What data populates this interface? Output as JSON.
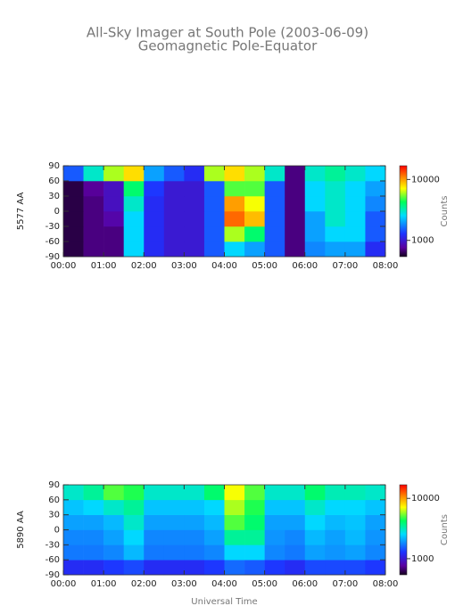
{
  "header": {
    "title": "All-Sky Imager at South Pole (2003-06-09)",
    "subtitle": "Geomagnetic Pole-Equator"
  },
  "chart_data": [
    {
      "type": "heatmap",
      "ylabel": "5577 AA",
      "colorbar_label": "Counts",
      "log_color": true,
      "xbins": [
        0,
        0.5,
        1,
        1.5,
        2,
        2.5,
        3,
        3.5,
        4,
        4.5,
        5,
        5.5,
        6,
        6.5,
        7,
        7.5,
        8
      ],
      "ybins": [
        -90,
        -60,
        -30,
        0,
        30,
        60,
        90
      ],
      "values": [
        [
          600,
          700,
          700,
          2500,
          1200,
          1000,
          1000,
          1500,
          2500,
          2000,
          1500,
          700,
          1800,
          2000,
          2000,
          1200
        ],
        [
          600,
          700,
          700,
          2500,
          1200,
          1000,
          1000,
          1500,
          6000,
          4000,
          1500,
          700,
          2000,
          2500,
          2500,
          1500
        ],
        [
          600,
          700,
          800,
          2500,
          1200,
          1000,
          1000,
          1500,
          12000,
          9000,
          1500,
          700,
          2000,
          3000,
          2500,
          1500
        ],
        [
          600,
          700,
          900,
          3000,
          1200,
          1000,
          1000,
          1500,
          10000,
          7000,
          1500,
          700,
          2500,
          3000,
          2500,
          1800
        ],
        [
          600,
          750,
          900,
          4000,
          1300,
          1000,
          1000,
          1500,
          5000,
          5000,
          1500,
          700,
          2500,
          3000,
          2500,
          2000
        ],
        [
          1500,
          3000,
          6000,
          8000,
          2000,
          1500,
          1200,
          6000,
          8000,
          6000,
          3000,
          700,
          3000,
          3500,
          3000,
          2500
        ]
      ],
      "xlim": [
        0,
        8
      ],
      "xticks": [
        {
          "value": 0,
          "label": "00:00"
        },
        {
          "value": 1,
          "label": "01:00"
        },
        {
          "value": 2,
          "label": "02:00"
        },
        {
          "value": 3,
          "label": "03:00"
        },
        {
          "value": 4,
          "label": "04:00"
        },
        {
          "value": 5,
          "label": "05:00"
        },
        {
          "value": 6,
          "label": "06:00"
        },
        {
          "value": 7,
          "label": "07:00"
        },
        {
          "value": 8,
          "label": "08:00"
        }
      ],
      "ylim": [
        -90,
        90
      ],
      "yticks": [
        -90,
        -60,
        -30,
        0,
        30,
        60,
        90
      ],
      "clim": [
        540,
        16800
      ],
      "cticks": [
        1000,
        10000
      ]
    },
    {
      "type": "heatmap",
      "ylabel": "5890 AA",
      "colorbar_label": "Counts",
      "log_color": true,
      "xlabel": "Universal Time",
      "xbins": [
        0,
        0.5,
        1,
        1.5,
        2,
        2.5,
        3,
        3.5,
        4,
        4.5,
        5,
        5.5,
        6,
        6.5,
        7,
        7.5,
        8
      ],
      "ybins": [
        -90,
        -60,
        -30,
        0,
        30,
        60,
        90
      ],
      "values": [
        [
          1200,
          1200,
          1300,
          1400,
          1200,
          1200,
          1200,
          1300,
          1600,
          1500,
          1300,
          1200,
          1400,
          1400,
          1400,
          1300
        ],
        [
          1700,
          1700,
          1800,
          2200,
          1700,
          1700,
          1700,
          1800,
          2500,
          2500,
          1800,
          1700,
          2000,
          1900,
          2000,
          1800
        ],
        [
          1800,
          1800,
          2000,
          2500,
          1800,
          1800,
          1800,
          2000,
          3500,
          3500,
          1900,
          1800,
          2200,
          2000,
          2200,
          1900
        ],
        [
          2000,
          2000,
          2200,
          3000,
          2000,
          2000,
          2000,
          2200,
          5000,
          4000,
          2000,
          2000,
          2500,
          2200,
          2300,
          2000
        ],
        [
          2300,
          2500,
          3000,
          3500,
          2300,
          2300,
          2300,
          2500,
          6000,
          4500,
          2300,
          2300,
          3000,
          2500,
          2500,
          2300
        ],
        [
          3000,
          3500,
          5000,
          4500,
          3000,
          3000,
          3000,
          4000,
          7000,
          5000,
          3000,
          3000,
          4000,
          3200,
          3200,
          3000
        ]
      ],
      "xlim": [
        0,
        8
      ],
      "xticks": [
        {
          "value": 0,
          "label": "00:00"
        },
        {
          "value": 1,
          "label": "01:00"
        },
        {
          "value": 2,
          "label": "02:00"
        },
        {
          "value": 3,
          "label": "03:00"
        },
        {
          "value": 4,
          "label": "04:00"
        },
        {
          "value": 5,
          "label": "05:00"
        },
        {
          "value": 6,
          "label": "06:00"
        },
        {
          "value": 7,
          "label": "07:00"
        },
        {
          "value": 8,
          "label": "08:00"
        }
      ],
      "ylim": [
        -90,
        90
      ],
      "yticks": [
        -90,
        -60,
        -30,
        0,
        30,
        60,
        90
      ],
      "clim": [
        540,
        16800
      ],
      "cticks": [
        1000,
        10000
      ]
    }
  ]
}
